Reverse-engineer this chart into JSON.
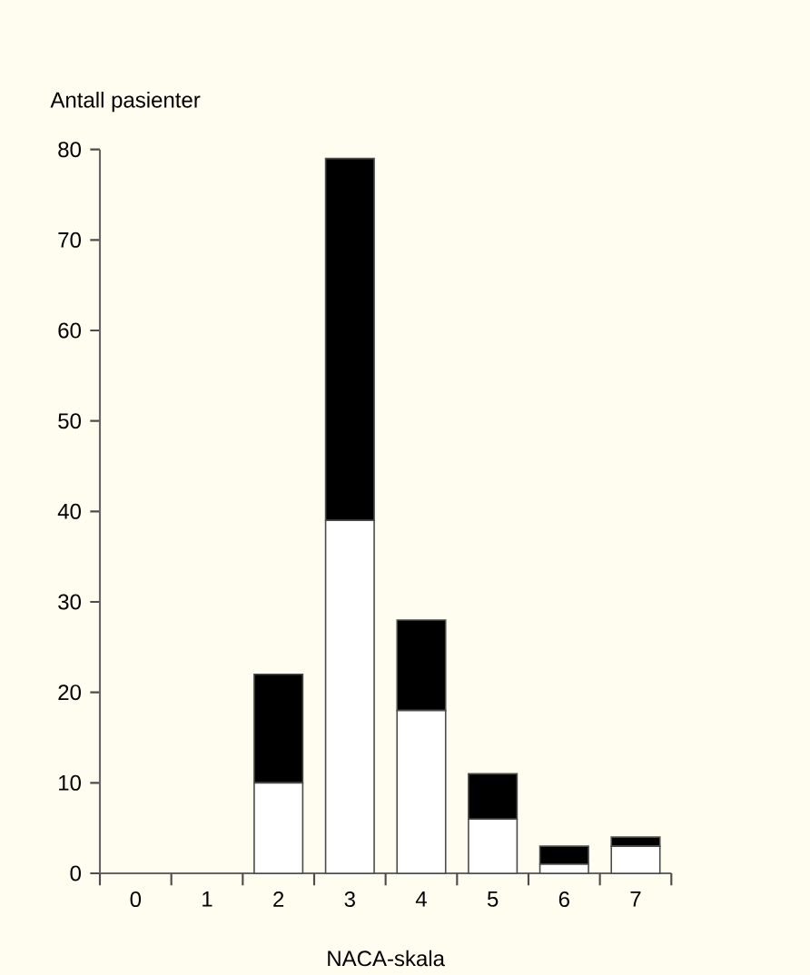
{
  "chart_data": {
    "type": "bar",
    "stacked": true,
    "ylabel": "Antall pasienter",
    "xlabel": "NACA-skala",
    "categories": [
      "0",
      "1",
      "2",
      "3",
      "4",
      "5",
      "6",
      "7"
    ],
    "series": [
      {
        "color": "#ffffff",
        "values": [
          0,
          0,
          10,
          39,
          18,
          6,
          1,
          3
        ]
      },
      {
        "color": "#000000",
        "values": [
          0,
          0,
          12,
          40,
          10,
          5,
          2,
          1
        ]
      }
    ],
    "ylim": [
      0,
      80
    ],
    "yticks": [
      0,
      10,
      20,
      30,
      40,
      50,
      60,
      70,
      80
    ]
  }
}
